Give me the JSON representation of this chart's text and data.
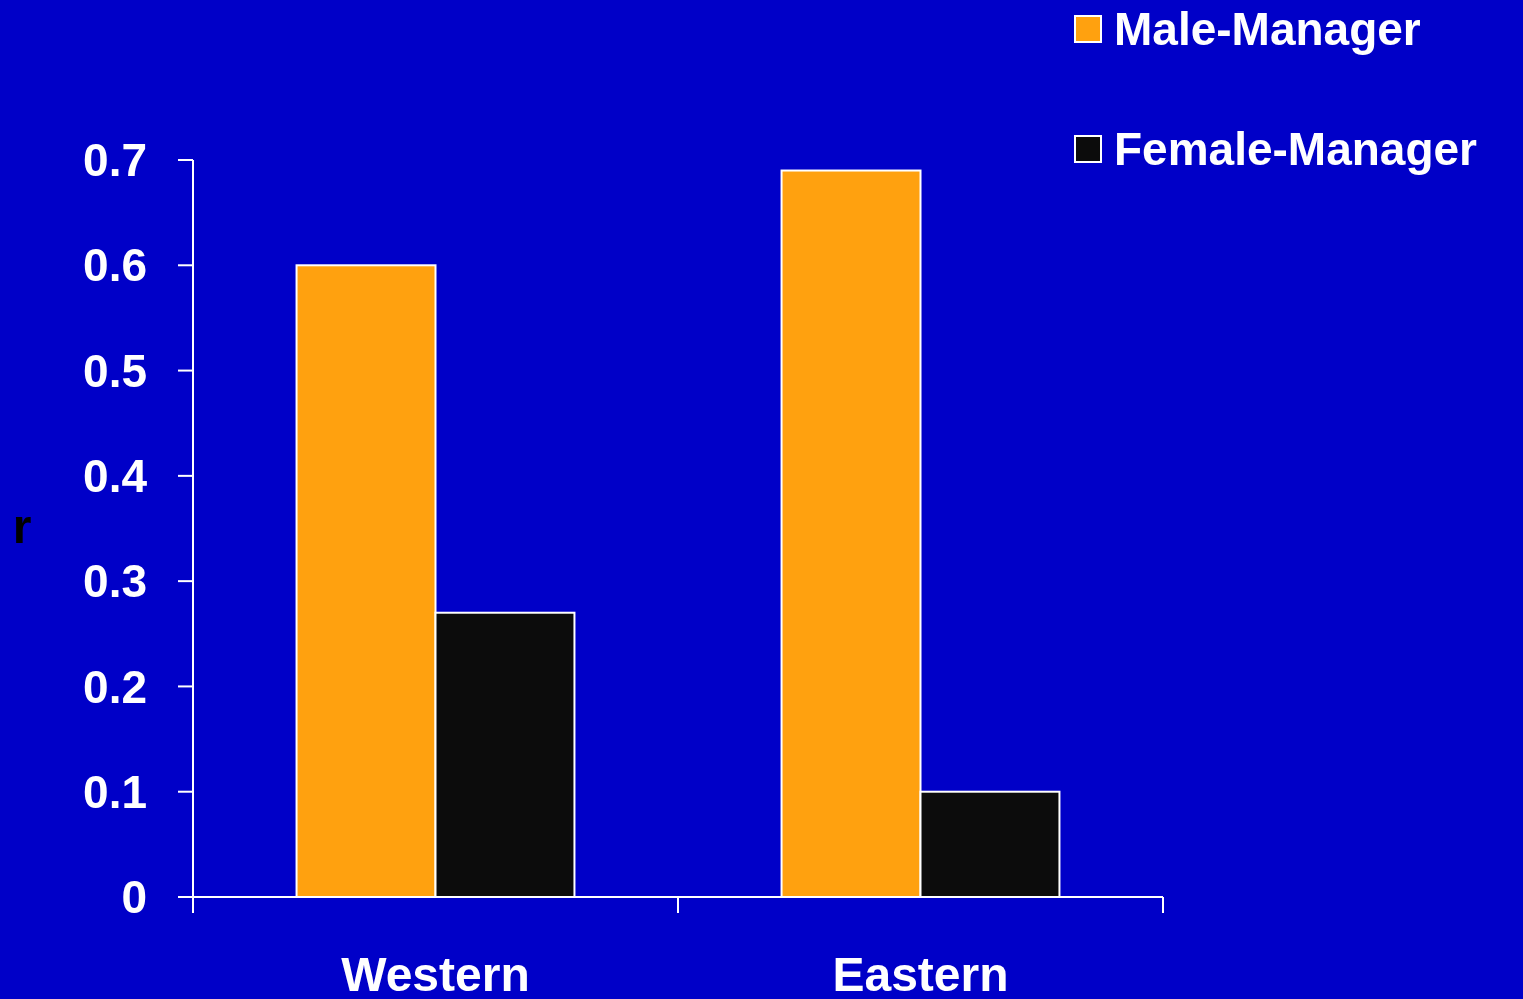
{
  "chart_data": {
    "type": "bar",
    "ylabel": "r",
    "categories": [
      "Western",
      "Eastern"
    ],
    "series": [
      {
        "name": "Male-Manager",
        "color": "#ffa10f",
        "values": [
          0.6,
          0.69
        ]
      },
      {
        "name": "Female-Manager",
        "color": "#0c0c0c",
        "values": [
          0.27,
          0.1
        ]
      }
    ],
    "ylim": [
      0,
      0.7
    ],
    "yticks": [
      {
        "value": 0,
        "label": "0"
      },
      0.1,
      0.2,
      0.3,
      0.4,
      0.5,
      0.6,
      0.7
    ],
    "grid": false,
    "legend": "top right"
  }
}
